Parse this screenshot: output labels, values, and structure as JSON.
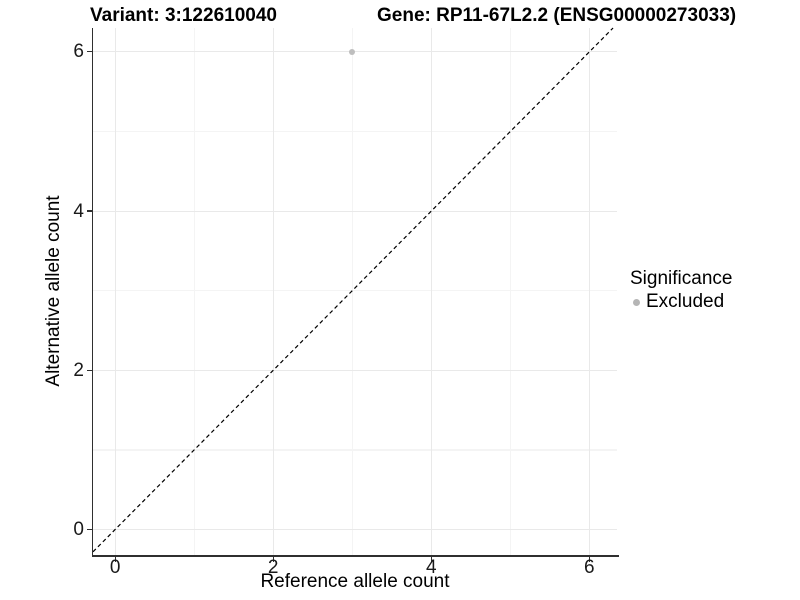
{
  "chart_data": {
    "type": "scatter",
    "title_left": "Variant: 3:122610040",
    "title_right": "Gene: RP11-67L2.2 (ENSG00000273033)",
    "xlabel": "Reference allele count",
    "ylabel": "Alternative allele count",
    "xlim": [
      -0.28,
      6.35
    ],
    "ylim": [
      -0.32,
      6.3
    ],
    "x_ticks": [
      0,
      2,
      4,
      6
    ],
    "y_ticks": [
      0,
      2,
      4,
      6
    ],
    "x_minor_ticks": [
      1,
      3,
      5
    ],
    "y_minor_ticks": [
      1,
      3,
      5
    ],
    "grid": "major and minor, light gray, white background",
    "reference_line": {
      "type": "identity y=x",
      "slope": 1,
      "intercept": 0,
      "style": "dashed",
      "color": "#000000"
    },
    "series": [
      {
        "name": "Excluded",
        "color": "#bebebe",
        "marker": "circle",
        "points": [
          {
            "x": 3,
            "y": 6
          }
        ]
      }
    ],
    "legend": {
      "title": "Significance",
      "position": "right",
      "items": [
        {
          "label": "Excluded",
          "color": "#b5b5b5",
          "marker": "circle"
        }
      ]
    },
    "colors": {
      "background": "#ffffff",
      "grid_major": "#e9e9e9",
      "grid_minor": "#f4f4f4",
      "axis_line": "#2f2f2f",
      "tick_label": "#1a1a1a",
      "title_text": "#000000"
    }
  }
}
